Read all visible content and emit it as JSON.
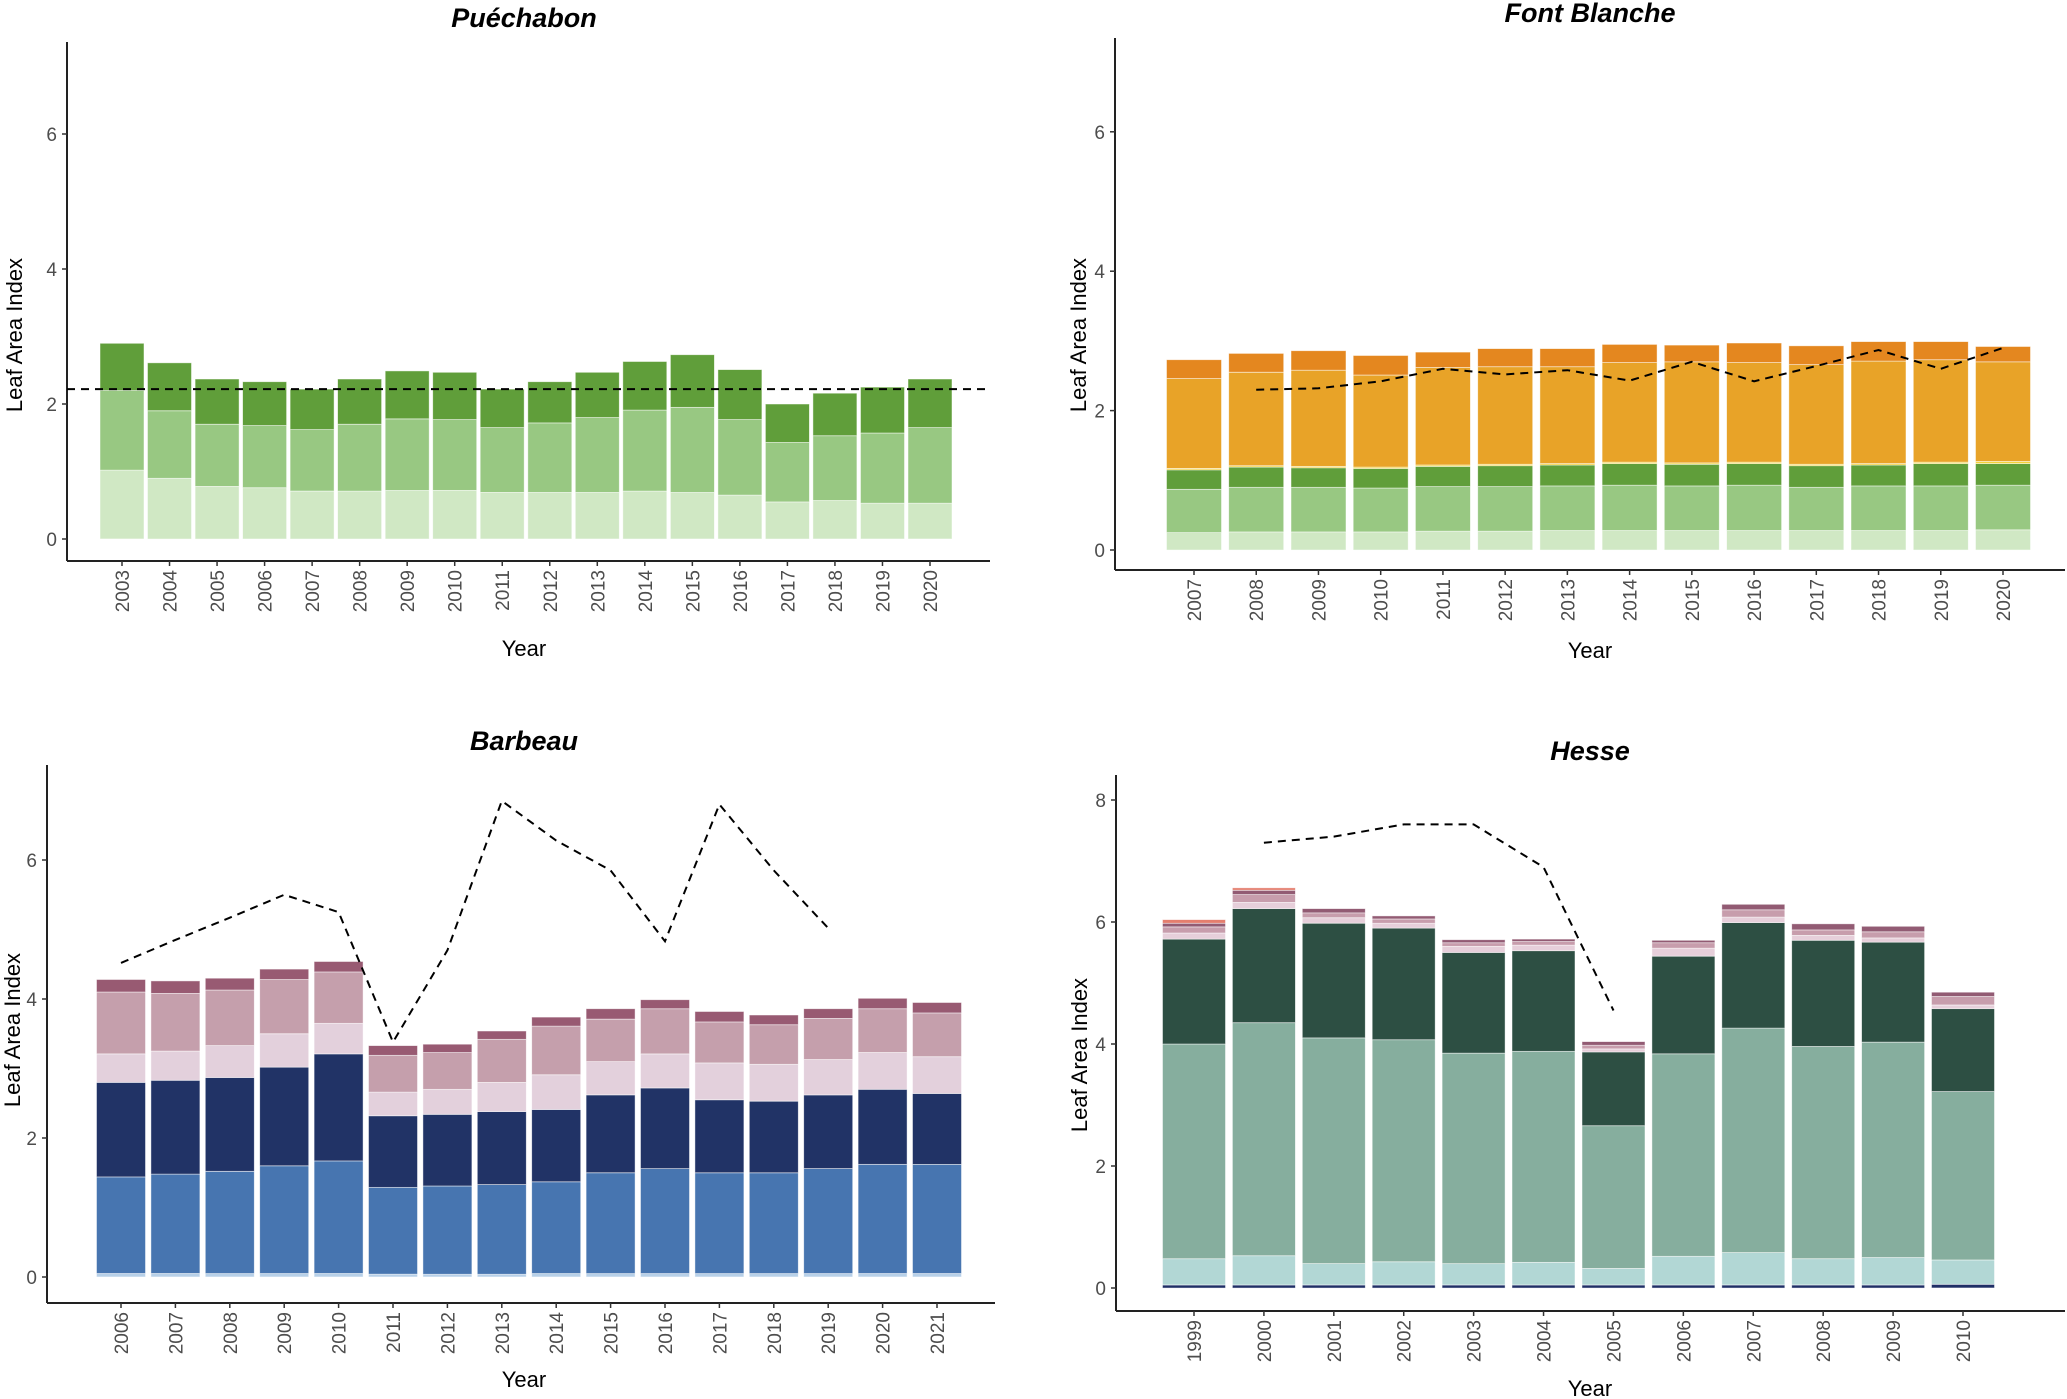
{
  "chart_data": [
    {
      "type": "bar",
      "stacked": true,
      "title": "Puéchabon",
      "xlabel": "Year",
      "ylabel": "Leaf Area Index",
      "yticks": [
        0,
        2,
        4,
        6
      ],
      "ylim": [
        -0.3,
        7.3
      ],
      "grid": false,
      "categories": [
        "2003",
        "2004",
        "2005",
        "2006",
        "2007",
        "2008",
        "2009",
        "2010",
        "2011",
        "2012",
        "2013",
        "2014",
        "2015",
        "2016",
        "2017",
        "2018",
        "2019",
        "2020"
      ],
      "layer_colors": [
        "#d0e8c4",
        "#98c882",
        "#609e3a"
      ],
      "cumulative_tops": [
        [
          1.02,
          2.2,
          2.9
        ],
        [
          0.9,
          1.9,
          2.61
        ],
        [
          0.78,
          1.7,
          2.37
        ],
        [
          0.76,
          1.68,
          2.33
        ],
        [
          0.71,
          1.62,
          2.22
        ],
        [
          0.71,
          1.7,
          2.37
        ],
        [
          0.72,
          1.78,
          2.49
        ],
        [
          0.72,
          1.77,
          2.47
        ],
        [
          0.69,
          1.65,
          2.22
        ],
        [
          0.69,
          1.72,
          2.33
        ],
        [
          0.69,
          1.8,
          2.47
        ],
        [
          0.71,
          1.91,
          2.63
        ],
        [
          0.69,
          1.95,
          2.73
        ],
        [
          0.65,
          1.77,
          2.51
        ],
        [
          0.55,
          1.43,
          2.0
        ],
        [
          0.57,
          1.53,
          2.16
        ],
        [
          0.53,
          1.57,
          2.25
        ],
        [
          0.53,
          1.65,
          2.37
        ]
      ],
      "reference_line": {
        "style": "dashed",
        "kind": "horizontal",
        "value": 2.22
      }
    },
    {
      "type": "bar",
      "stacked": true,
      "title": "Font Blanche",
      "xlabel": "Year",
      "ylabel": "Leaf Area Index",
      "yticks": [
        0,
        2,
        4,
        6
      ],
      "ylim": [
        -0.3,
        7.3
      ],
      "grid": false,
      "categories": [
        "2007",
        "2008",
        "2009",
        "2010",
        "2011",
        "2012",
        "2013",
        "2014",
        "2015",
        "2016",
        "2017",
        "2018",
        "2019",
        "2020"
      ],
      "layer_colors": [
        "#d0e8c4",
        "#98c882",
        "#609e3a",
        "#f2d13a",
        "#e8a328",
        "#e4871f"
      ],
      "cumulative_tops": [
        [
          0.25,
          0.87,
          1.15,
          1.17,
          2.46,
          2.73
        ],
        [
          0.26,
          0.9,
          1.19,
          1.21,
          2.55,
          2.82
        ],
        [
          0.26,
          0.9,
          1.18,
          1.2,
          2.58,
          2.86
        ],
        [
          0.26,
          0.89,
          1.17,
          1.19,
          2.51,
          2.79
        ],
        [
          0.27,
          0.91,
          1.2,
          1.22,
          2.62,
          2.84
        ],
        [
          0.27,
          0.91,
          1.21,
          1.23,
          2.63,
          2.89
        ],
        [
          0.28,
          0.92,
          1.22,
          1.24,
          2.63,
          2.89
        ],
        [
          0.28,
          0.93,
          1.24,
          1.26,
          2.69,
          2.95
        ],
        [
          0.28,
          0.92,
          1.23,
          1.25,
          2.7,
          2.94
        ],
        [
          0.28,
          0.93,
          1.24,
          1.26,
          2.69,
          2.97
        ],
        [
          0.28,
          0.9,
          1.21,
          1.23,
          2.66,
          2.93
        ],
        [
          0.28,
          0.92,
          1.22,
          1.24,
          2.71,
          2.99
        ],
        [
          0.28,
          0.92,
          1.24,
          1.26,
          2.73,
          2.99
        ],
        [
          0.29,
          0.93,
          1.24,
          1.27,
          2.7,
          2.92
        ]
      ],
      "reference_line": {
        "style": "dashed",
        "kind": "series",
        "x": [
          "2008",
          "2009",
          "2010",
          "2011",
          "2012",
          "2013",
          "2014",
          "2015",
          "2016",
          "2017",
          "2018",
          "2019",
          "2020"
        ],
        "values": [
          2.3,
          2.32,
          2.42,
          2.6,
          2.52,
          2.58,
          2.43,
          2.7,
          2.42,
          2.64,
          2.87,
          2.6,
          2.9
        ]
      }
    },
    {
      "type": "bar",
      "stacked": true,
      "title": "Barbeau",
      "xlabel": "Year",
      "ylabel": "Leaf Area Index",
      "yticks": [
        0,
        2,
        4,
        6
      ],
      "ylim": [
        -0.4,
        7.3
      ],
      "grid": false,
      "categories": [
        "2006",
        "2007",
        "2008",
        "2009",
        "2010",
        "2011",
        "2012",
        "2013",
        "2014",
        "2015",
        "2016",
        "2017",
        "2018",
        "2019",
        "2020",
        "2021"
      ],
      "layer_colors": [
        "#b7d0e8",
        "#4775b0",
        "#213366",
        "#e3d0dc",
        "#c59fac",
        "#985a72"
      ],
      "cumulative_tops": [
        [
          0.05,
          1.44,
          2.8,
          3.21,
          4.1,
          4.28
        ],
        [
          0.05,
          1.48,
          2.83,
          3.25,
          4.08,
          4.26
        ],
        [
          0.05,
          1.52,
          2.87,
          3.33,
          4.13,
          4.3
        ],
        [
          0.05,
          1.6,
          3.02,
          3.5,
          4.28,
          4.43
        ],
        [
          0.05,
          1.67,
          3.21,
          3.65,
          4.39,
          4.54
        ],
        [
          0.04,
          1.29,
          2.32,
          2.66,
          3.19,
          3.33
        ],
        [
          0.04,
          1.31,
          2.34,
          2.7,
          3.23,
          3.35
        ],
        [
          0.04,
          1.33,
          2.38,
          2.8,
          3.42,
          3.54
        ],
        [
          0.05,
          1.37,
          2.41,
          2.91,
          3.61,
          3.74
        ],
        [
          0.05,
          1.5,
          2.62,
          3.1,
          3.71,
          3.86
        ],
        [
          0.05,
          1.56,
          2.72,
          3.21,
          3.86,
          3.99
        ],
        [
          0.05,
          1.5,
          2.55,
          3.08,
          3.67,
          3.82
        ],
        [
          0.05,
          1.5,
          2.53,
          3.06,
          3.63,
          3.77
        ],
        [
          0.05,
          1.56,
          2.62,
          3.13,
          3.72,
          3.86
        ],
        [
          0.05,
          1.62,
          2.7,
          3.23,
          3.86,
          4.01
        ],
        [
          0.05,
          1.62,
          2.64,
          3.17,
          3.8,
          3.95
        ]
      ],
      "reference_line": {
        "style": "dashed",
        "kind": "series",
        "x": [
          "2006",
          "2007",
          "2008",
          "2009",
          "2010",
          "2011",
          "2012",
          "2013",
          "2014",
          "2015",
          "2016",
          "2017",
          "2018",
          "2019"
        ],
        "values": [
          4.52,
          4.85,
          5.17,
          5.5,
          5.25,
          3.38,
          4.7,
          6.85,
          6.28,
          5.85,
          4.83,
          6.8,
          5.85,
          5.02
        ]
      }
    },
    {
      "type": "bar",
      "stacked": true,
      "title": "Hesse",
      "xlabel": "Year",
      "ylabel": "Leaf Area Index",
      "yticks": [
        0,
        2,
        4,
        6,
        8
      ],
      "ylim": [
        -0.4,
        8.4
      ],
      "grid": false,
      "categories": [
        "1999",
        "2000",
        "2001",
        "2002",
        "2003",
        "2004",
        "2005",
        "2006",
        "2007",
        "2008",
        "2009",
        "2010"
      ],
      "layer_colors": [
        "#1f2f66",
        "#b2d7d5",
        "#86ae9e",
        "#2d4f43",
        "#e6cfda",
        "#c79dac",
        "#925b73",
        "#e47e6e"
      ],
      "cumulative_tops": [
        [
          0.05,
          0.48,
          4.0,
          5.72,
          5.82,
          5.92,
          5.98,
          6.04
        ],
        [
          0.05,
          0.53,
          4.35,
          6.22,
          6.32,
          6.45,
          6.52,
          6.56
        ],
        [
          0.05,
          0.4,
          4.1,
          5.98,
          6.07,
          6.15,
          6.22,
          6.22
        ],
        [
          0.05,
          0.43,
          4.07,
          5.9,
          5.98,
          6.05,
          6.1,
          6.1
        ],
        [
          0.05,
          0.4,
          3.85,
          5.5,
          5.6,
          5.66,
          5.71,
          5.71
        ],
        [
          0.05,
          0.42,
          3.88,
          5.53,
          5.62,
          5.68,
          5.72,
          5.72
        ],
        [
          0.05,
          0.32,
          2.66,
          3.87,
          3.92,
          3.98,
          4.04,
          4.04
        ],
        [
          0.05,
          0.52,
          3.84,
          5.44,
          5.57,
          5.66,
          5.7,
          5.7
        ],
        [
          0.05,
          0.58,
          4.26,
          5.99,
          6.08,
          6.2,
          6.29,
          6.29
        ],
        [
          0.05,
          0.48,
          3.96,
          5.7,
          5.78,
          5.87,
          5.97,
          5.97
        ],
        [
          0.05,
          0.5,
          4.03,
          5.67,
          5.74,
          5.84,
          5.93,
          5.93
        ],
        [
          0.06,
          0.46,
          3.22,
          4.58,
          4.64,
          4.78,
          4.85,
          4.85
        ]
      ],
      "reference_line": {
        "style": "dashed",
        "kind": "series",
        "x": [
          "2000",
          "2001",
          "2002",
          "2003",
          "2004",
          "2005"
        ],
        "values": [
          7.3,
          7.4,
          7.6,
          7.6,
          6.9,
          4.55
        ]
      }
    }
  ]
}
